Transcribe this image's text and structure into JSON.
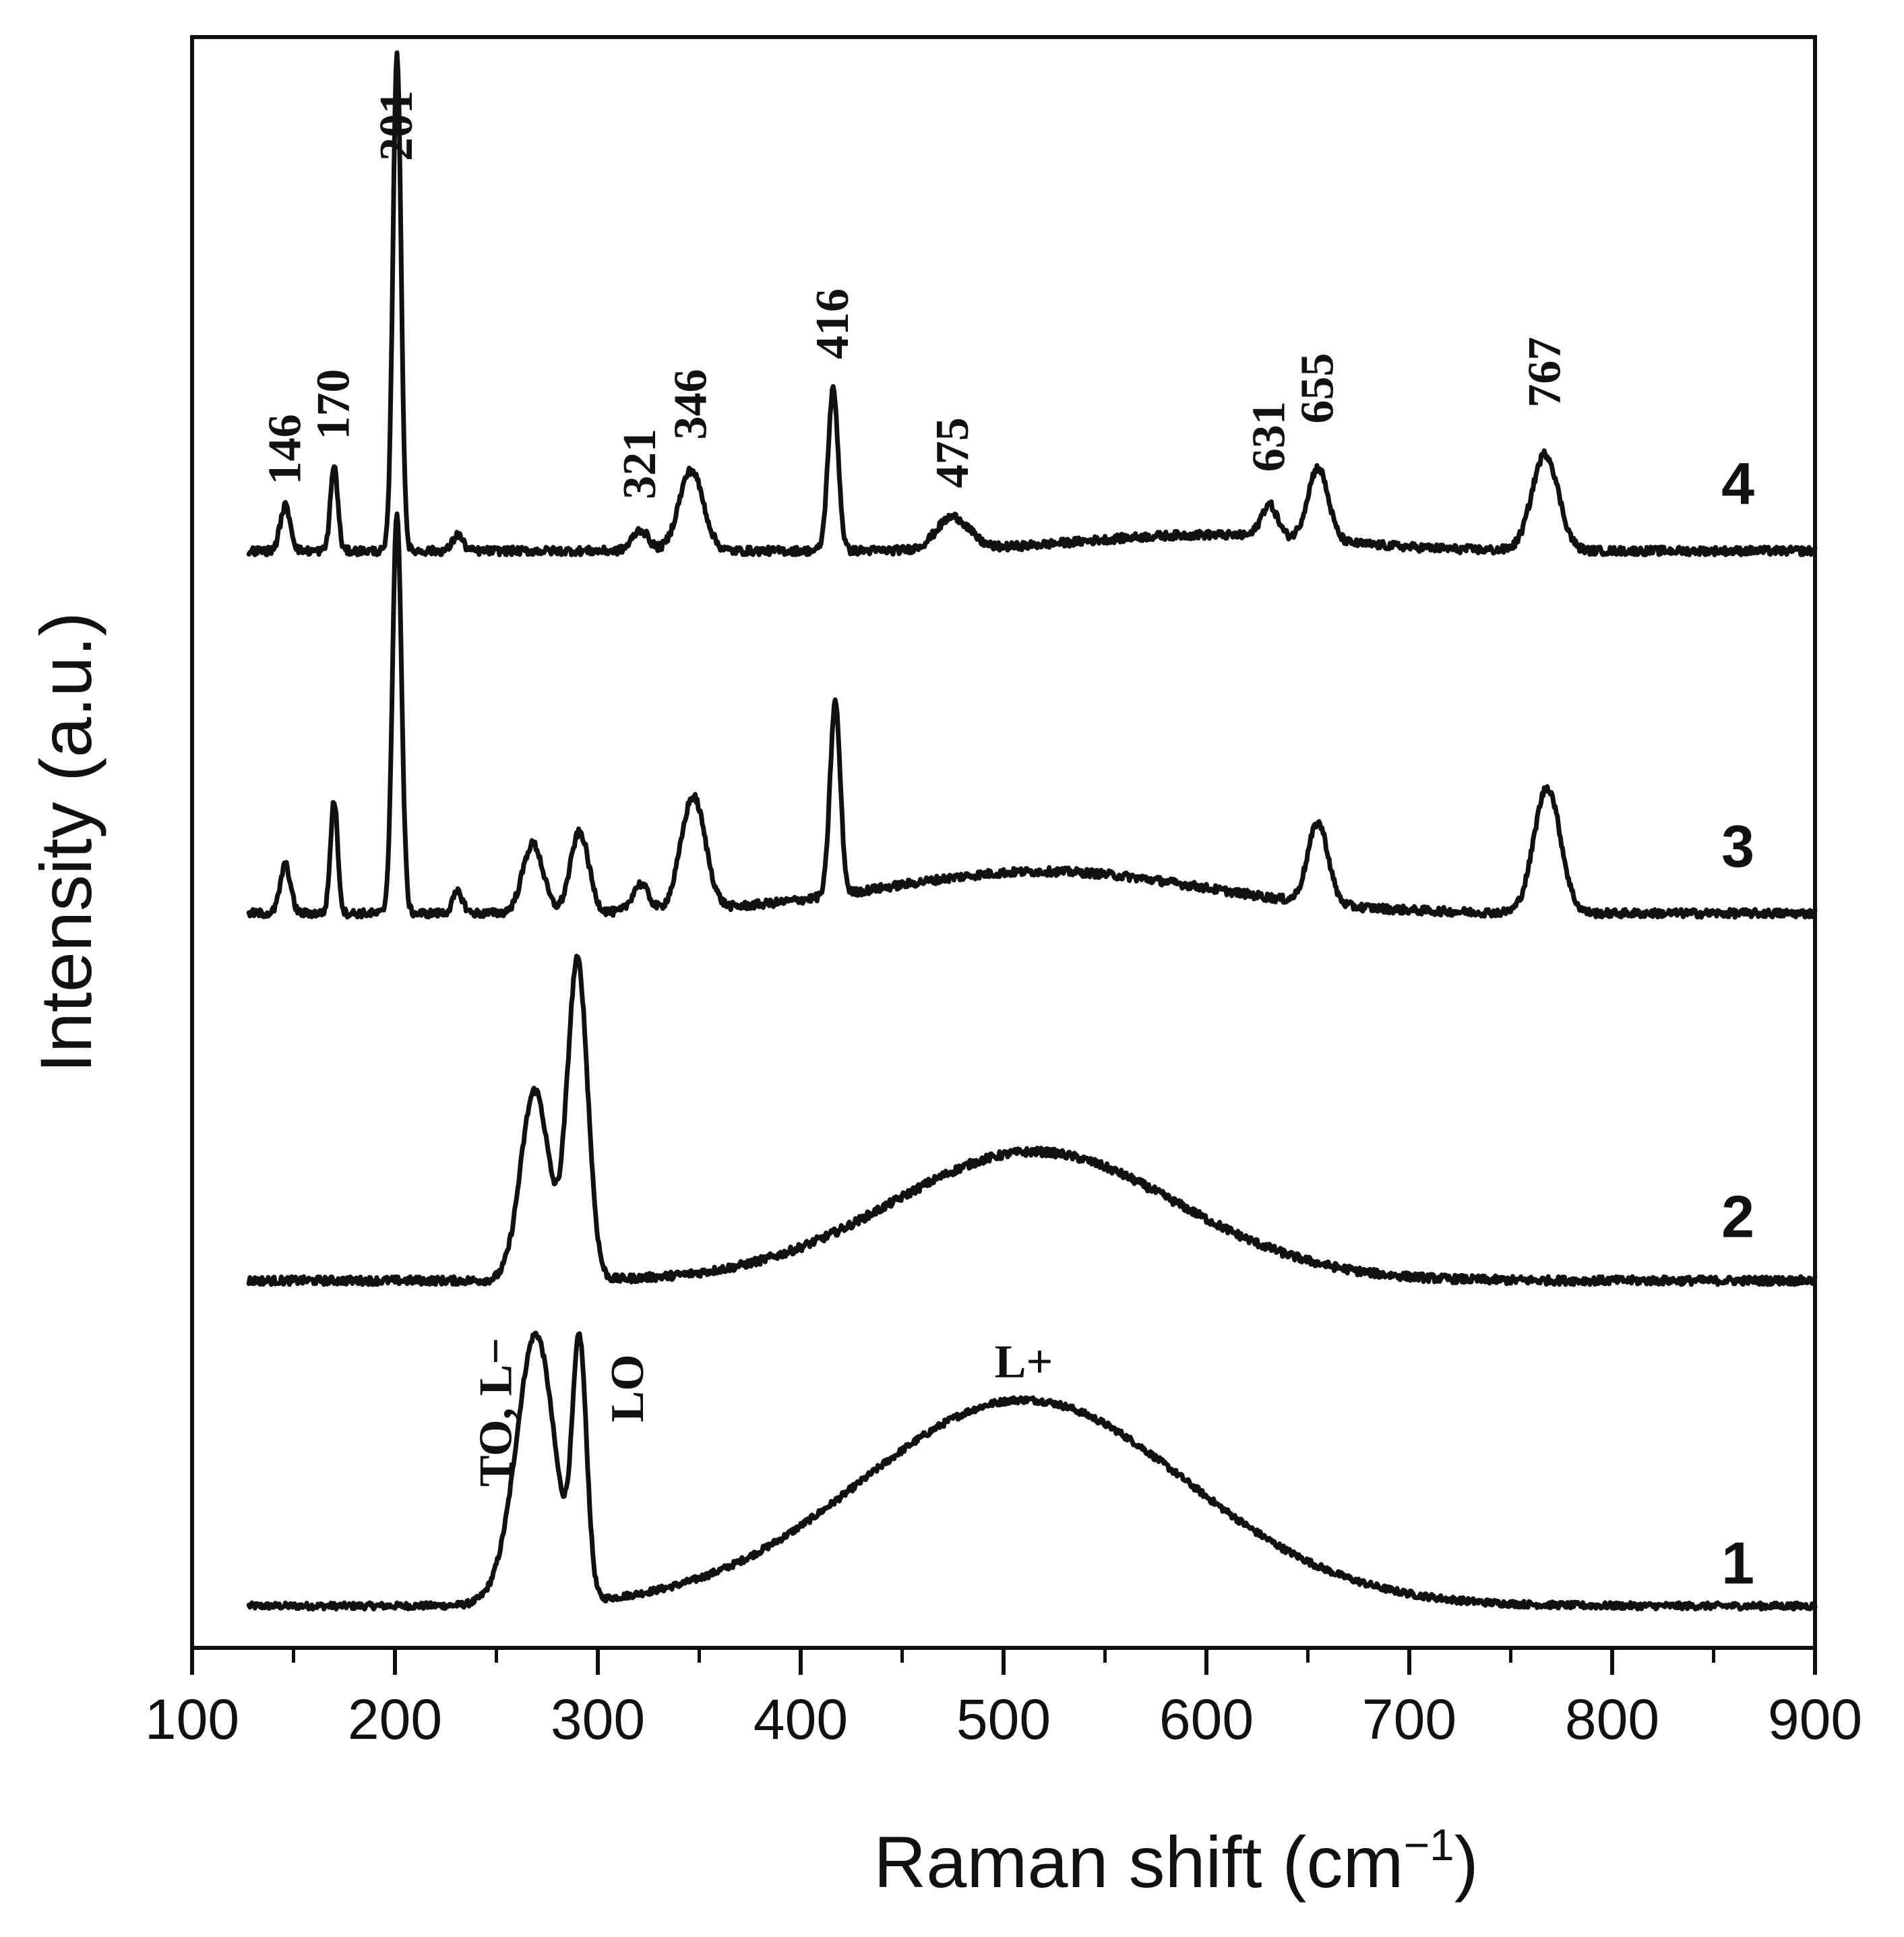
{
  "chart_data": {
    "type": "line",
    "title": "",
    "xlabel": "Raman shift (cm",
    "xlabel_superscript": "−1",
    "xlabel_close": ")",
    "ylabel": "Intensity (a.u.)",
    "xlim": [
      100,
      900
    ],
    "x_ticks": [
      100,
      200,
      300,
      400,
      500,
      600,
      700,
      800,
      900
    ],
    "x_range_data": [
      128,
      900
    ],
    "y_unit": "a.u. (traces vertically offset, 0 = bottom of plot, 1 = top)",
    "series": [
      {
        "name": "1",
        "baseline": 0.026,
        "noise": 0.002,
        "peaks": [
          {
            "center": 270,
            "height": 0.155,
            "width": 9
          },
          {
            "center": 260,
            "height": 0.02,
            "width": 10
          },
          {
            "center": 291,
            "height": 0.155,
            "width": 3.5
          },
          {
            "center": 510,
            "height": 0.128,
            "width": 80
          }
        ]
      },
      {
        "name": "2",
        "baseline": 0.228,
        "noise": 0.0025,
        "peaks": [
          {
            "center": 269,
            "height": 0.118,
            "width": 7
          },
          {
            "center": 290,
            "height": 0.198,
            "width": 5
          },
          {
            "center": 515,
            "height": 0.08,
            "width": 70
          }
        ]
      },
      {
        "name": "3",
        "baseline": 0.456,
        "noise": 0.0025,
        "peaks": [
          {
            "center": 146,
            "height": 0.03,
            "width": 2.5
          },
          {
            "center": 170,
            "height": 0.07,
            "width": 1.8
          },
          {
            "center": 201,
            "height": 0.25,
            "width": 2.2
          },
          {
            "center": 231,
            "height": 0.013,
            "width": 2.5
          },
          {
            "center": 268,
            "height": 0.043,
            "width": 5
          },
          {
            "center": 291,
            "height": 0.05,
            "width": 4.5
          },
          {
            "center": 321,
            "height": 0.017,
            "width": 4
          },
          {
            "center": 347,
            "height": 0.07,
            "width": 6
          },
          {
            "center": 417,
            "height": 0.12,
            "width": 2.5
          },
          {
            "center": 520,
            "height": 0.026,
            "width": 80
          },
          {
            "center": 655,
            "height": 0.05,
            "width": 5
          },
          {
            "center": 768,
            "height": 0.078,
            "width": 6.5
          }
        ]
      },
      {
        "name": "4",
        "baseline": 0.681,
        "noise": 0.0025,
        "peaks": [
          {
            "center": 146,
            "height": 0.028,
            "width": 2.5
          },
          {
            "center": 170,
            "height": 0.053,
            "width": 1.8
          },
          {
            "center": 201,
            "height": 0.31,
            "width": 2.0
          },
          {
            "center": 231,
            "height": 0.01,
            "width": 2.5
          },
          {
            "center": 321,
            "height": 0.013,
            "width": 4
          },
          {
            "center": 346,
            "height": 0.05,
            "width": 6
          },
          {
            "center": 416,
            "height": 0.1,
            "width": 2.5
          },
          {
            "center": 475,
            "height": 0.02,
            "width": 8
          },
          {
            "center": 600,
            "height": 0.01,
            "width": 60
          },
          {
            "center": 631,
            "height": 0.02,
            "width": 4
          },
          {
            "center": 655,
            "height": 0.045,
            "width": 5
          },
          {
            "center": 767,
            "height": 0.06,
            "width": 6.5
          }
        ]
      }
    ],
    "peak_annotations": [
      {
        "text": "146",
        "x": 146,
        "y": 0.722
      },
      {
        "text": "170",
        "x": 170,
        "y": 0.75
      },
      {
        "text": "201",
        "x": 201,
        "y": 0.923
      },
      {
        "text": "321",
        "x": 321,
        "y": 0.713
      },
      {
        "text": "346",
        "x": 346,
        "y": 0.75
      },
      {
        "text": "416",
        "x": 416,
        "y": 0.8
      },
      {
        "text": "475",
        "x": 475,
        "y": 0.72
      },
      {
        "text": "631",
        "x": 631,
        "y": 0.73
      },
      {
        "text": "655",
        "x": 655,
        "y": 0.76
      },
      {
        "text": "767",
        "x": 767,
        "y": 0.77
      }
    ],
    "mode_annotations": [
      {
        "text": "TO, L−",
        "x": 250,
        "y": 0.1,
        "rotate": true
      },
      {
        "text": "LO",
        "x": 315,
        "y": 0.14,
        "rotate": true
      },
      {
        "text": "L+",
        "x": 510,
        "y": 0.168,
        "rotate": false
      }
    ],
    "series_labels": [
      {
        "text": "1",
        "x": 862,
        "y": 0.04
      },
      {
        "text": "2",
        "x": 862,
        "y": 0.255
      },
      {
        "text": "3",
        "x": 862,
        "y": 0.485
      },
      {
        "text": "4",
        "x": 862,
        "y": 0.71
      }
    ]
  }
}
